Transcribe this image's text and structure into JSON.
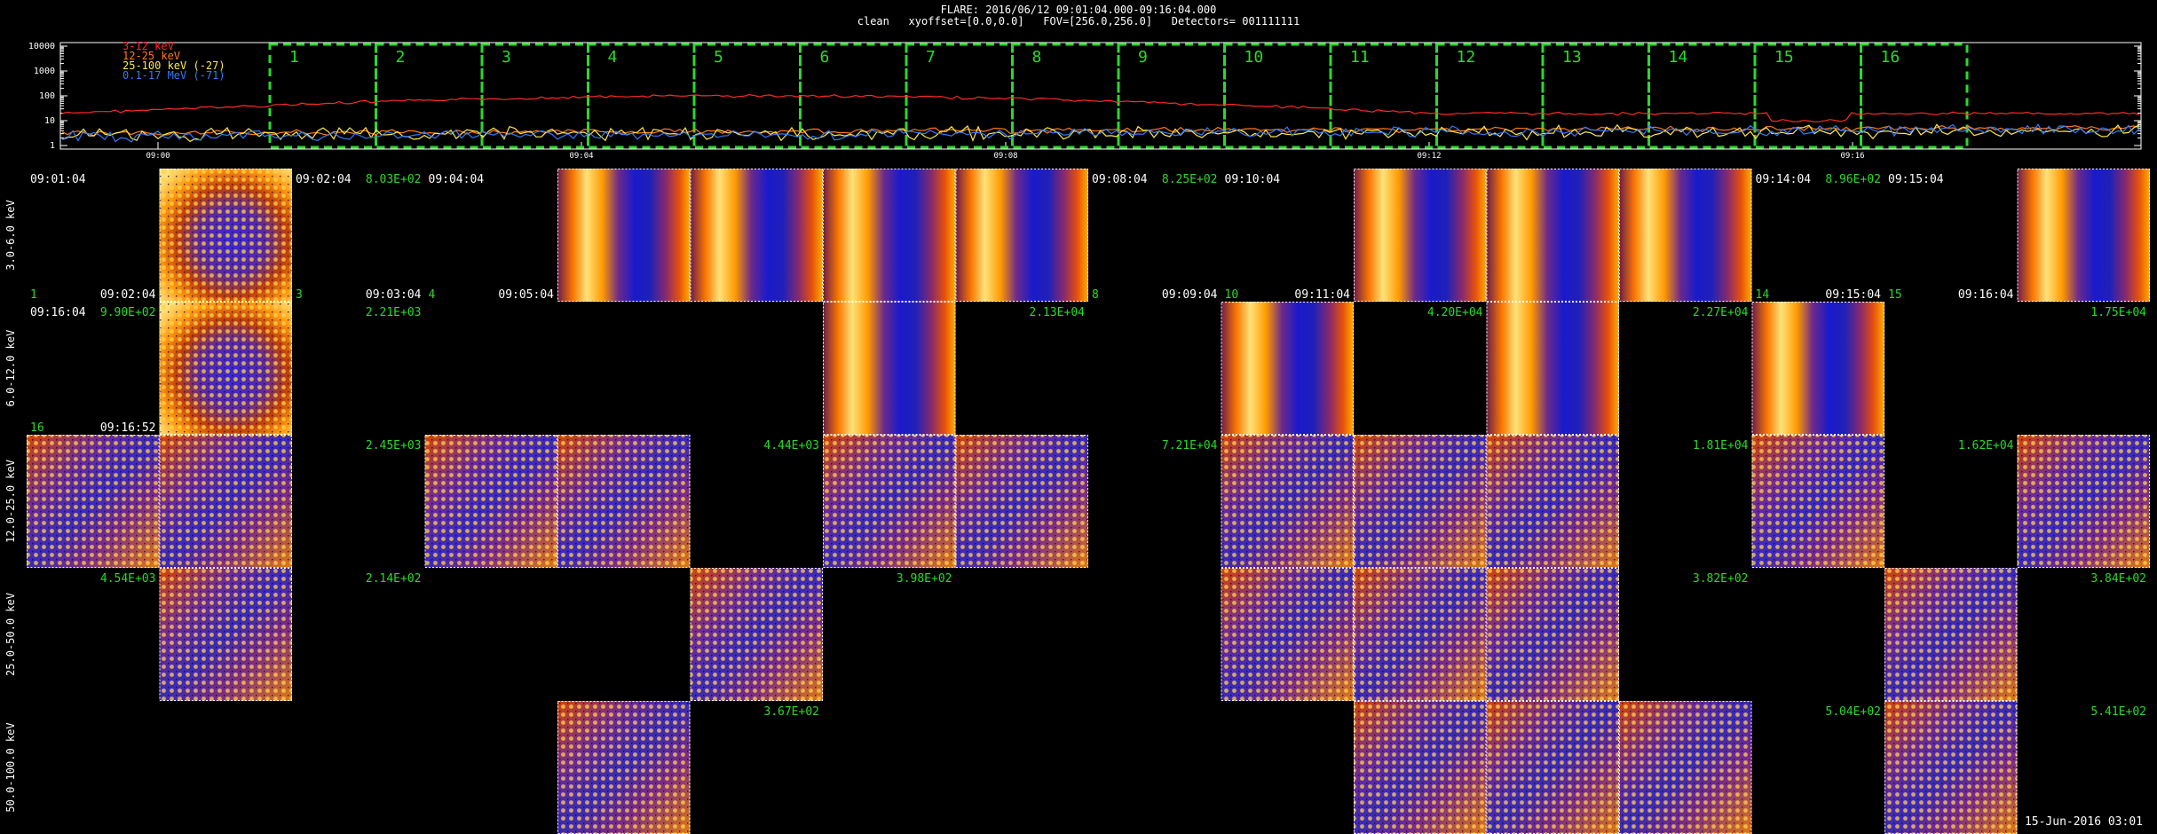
{
  "header": {
    "line1": "FLARE: 2016/06/12 09:01:04.000-09:16:04.000",
    "line2": "clean   xyoffset=[0.0,0.0]   FOV=[256.0,256.0]   Detectors= 001111111"
  },
  "chart_data": {
    "type": "line",
    "ylog": true,
    "y_ticks": [
      "10000",
      "1000",
      "100",
      "10",
      "1"
    ],
    "x_ticks": [
      "09:00",
      "09:04",
      "09:08",
      "09:12",
      "09:16"
    ],
    "legend": [
      {
        "label": "3-12 keV",
        "color": "#ff2a2a"
      },
      {
        "label": "12-25 keV",
        "color": "#ff7a1a"
      },
      {
        "label": "25-100 keV (-27)",
        "color": "#ffe84a"
      },
      {
        "label": "0.1-17 MeV (-71)",
        "color": "#2f7bff"
      }
    ],
    "intervals": [
      "1",
      "2",
      "3",
      "4",
      "5",
      "6",
      "7",
      "8",
      "9",
      "10",
      "11",
      "12",
      "13",
      "14",
      "15",
      "16"
    ],
    "interval_color": "#2bd92b"
  },
  "energy_bands": [
    "3.0-6.0 keV",
    "6.0-12.0 keV",
    "12.0-25.0 keV",
    "25.0-50.0 keV",
    "50.0-100.0 keV"
  ],
  "cell_texts": [
    {
      "t": "09:01:04",
      "c": "w",
      "col": 0,
      "row": 0,
      "p": "tl"
    },
    {
      "t": "1",
      "c": "g",
      "col": 0,
      "row": 0,
      "p": "bl"
    },
    {
      "t": "09:02:04",
      "c": "w",
      "col": 0,
      "row": 0,
      "p": "br"
    },
    {
      "t": "09:02:04",
      "c": "w",
      "col": 2,
      "row": 0,
      "p": "tl"
    },
    {
      "t": "3",
      "c": "g",
      "col": 2,
      "row": 0,
      "p": "bl"
    },
    {
      "t": "8.03E+02",
      "c": "g",
      "col": 2,
      "row": 0,
      "p": "tr"
    },
    {
      "t": "09:03:04",
      "c": "w",
      "col": 2,
      "row": 0,
      "p": "br"
    },
    {
      "t": "09:04:04",
      "c": "w",
      "col": 3,
      "row": 0,
      "p": "tl"
    },
    {
      "t": "4",
      "c": "g",
      "col": 3,
      "row": 0,
      "p": "bl"
    },
    {
      "t": "09:05:04",
      "c": "w",
      "col": 3,
      "row": 0,
      "p": "br"
    },
    {
      "t": "09:08:04",
      "c": "w",
      "col": 8,
      "row": 0,
      "p": "tl"
    },
    {
      "t": "8",
      "c": "g",
      "col": 8,
      "row": 0,
      "p": "bl"
    },
    {
      "t": "8.25E+02",
      "c": "g",
      "col": 8,
      "row": 0,
      "p": "tr"
    },
    {
      "t": "09:09:04",
      "c": "w",
      "col": 8,
      "row": 0,
      "p": "br"
    },
    {
      "t": "09:10:04",
      "c": "w",
      "col": 9,
      "row": 0,
      "p": "tl"
    },
    {
      "t": "10",
      "c": "g",
      "col": 9,
      "row": 0,
      "p": "bl"
    },
    {
      "t": "09:11:04",
      "c": "w",
      "col": 9,
      "row": 0,
      "p": "br"
    },
    {
      "t": "09:14:04",
      "c": "w",
      "col": 13,
      "row": 0,
      "p": "tl"
    },
    {
      "t": "14",
      "c": "g",
      "col": 13,
      "row": 0,
      "p": "bl"
    },
    {
      "t": "8.96E+02",
      "c": "g",
      "col": 13,
      "row": 0,
      "p": "tr"
    },
    {
      "t": "09:15:04",
      "c": "w",
      "col": 13,
      "row": 0,
      "p": "br"
    },
    {
      "t": "09:15:04",
      "c": "w",
      "col": 14,
      "row": 0,
      "p": "tl"
    },
    {
      "t": "15",
      "c": "g",
      "col": 14,
      "row": 0,
      "p": "bl"
    },
    {
      "t": "09:16:04",
      "c": "w",
      "col": 14,
      "row": 0,
      "p": "br"
    },
    {
      "t": "09:16:04",
      "c": "w",
      "col": 0,
      "row": 1,
      "p": "tl"
    },
    {
      "t": "9.90E+02",
      "c": "g",
      "col": 0,
      "row": 1,
      "p": "tr"
    },
    {
      "t": "16",
      "c": "g",
      "col": 0,
      "row": 1,
      "p": "bl"
    },
    {
      "t": "09:16:52",
      "c": "w",
      "col": 0,
      "row": 1,
      "p": "br"
    },
    {
      "t": "2.21E+03",
      "c": "g",
      "col": 2,
      "row": 1,
      "p": "tr"
    },
    {
      "t": "2.13E+04",
      "c": "g",
      "col": 7,
      "row": 1,
      "p": "tr"
    },
    {
      "t": "4.20E+04",
      "c": "g",
      "col": 10,
      "row": 1,
      "p": "tr"
    },
    {
      "t": "2.27E+04",
      "c": "g",
      "col": 12,
      "row": 1,
      "p": "tr"
    },
    {
      "t": "1.75E+04",
      "c": "g",
      "col": 15,
      "row": 1,
      "p": "tr"
    },
    {
      "t": "2.45E+03",
      "c": "g",
      "col": 2,
      "row": 2,
      "p": "tr"
    },
    {
      "t": "4.44E+03",
      "c": "g",
      "col": 5,
      "row": 2,
      "p": "tr"
    },
    {
      "t": "7.21E+04",
      "c": "g",
      "col": 8,
      "row": 2,
      "p": "tr"
    },
    {
      "t": "1.81E+04",
      "c": "g",
      "col": 12,
      "row": 2,
      "p": "tr"
    },
    {
      "t": "1.62E+04",
      "c": "g",
      "col": 14,
      "row": 2,
      "p": "tr"
    },
    {
      "t": "4.54E+03",
      "c": "g",
      "col": 0,
      "row": 3,
      "p": "tr"
    },
    {
      "t": "2.14E+02",
      "c": "g",
      "col": 2,
      "row": 3,
      "p": "tr"
    },
    {
      "t": "3.98E+02",
      "c": "g",
      "col": 6,
      "row": 3,
      "p": "tr"
    },
    {
      "t": "3.82E+02",
      "c": "g",
      "col": 12,
      "row": 3,
      "p": "tr"
    },
    {
      "t": "3.84E+02",
      "c": "g",
      "col": 15,
      "row": 3,
      "p": "tr"
    },
    {
      "t": "3.67E+02",
      "c": "g",
      "col": 5,
      "row": 4,
      "p": "tr"
    },
    {
      "t": "5.04E+02",
      "c": "g",
      "col": 13,
      "row": 4,
      "p": "tr"
    },
    {
      "t": "5.41E+02",
      "c": "g",
      "col": 15,
      "row": 4,
      "p": "tr"
    }
  ],
  "images": [
    {
      "col": 1,
      "row": 0,
      "k": "blob"
    },
    {
      "col": 4,
      "row": 0,
      "k": "bright"
    },
    {
      "col": 5,
      "row": 0,
      "k": "bright"
    },
    {
      "col": 6,
      "row": 0,
      "k": "bright"
    },
    {
      "col": 7,
      "row": 0,
      "k": "bright"
    },
    {
      "col": 10,
      "row": 0,
      "k": "bright"
    },
    {
      "col": 11,
      "row": 0,
      "k": "bright"
    },
    {
      "col": 12,
      "row": 0,
      "k": "bright"
    },
    {
      "col": 15,
      "row": 0,
      "k": "bright"
    },
    {
      "col": 1,
      "row": 1,
      "k": "blob"
    },
    {
      "col": 6,
      "row": 1,
      "k": "bright"
    },
    {
      "col": 9,
      "row": 1,
      "k": "bright"
    },
    {
      "col": 11,
      "row": 1,
      "k": "bright"
    },
    {
      "col": 13,
      "row": 1,
      "k": "bright"
    },
    {
      "col": 0,
      "row": 2,
      "k": "ripple"
    },
    {
      "col": 1,
      "row": 2,
      "k": "ripple"
    },
    {
      "col": 3,
      "row": 2,
      "k": "ripple"
    },
    {
      "col": 4,
      "row": 2,
      "k": "ripple"
    },
    {
      "col": 6,
      "row": 2,
      "k": "ripple"
    },
    {
      "col": 7,
      "row": 2,
      "k": "ripple"
    },
    {
      "col": 9,
      "row": 2,
      "k": "ripple"
    },
    {
      "col": 10,
      "row": 2,
      "k": "ripple"
    },
    {
      "col": 11,
      "row": 2,
      "k": "ripple"
    },
    {
      "col": 13,
      "row": 2,
      "k": "ripple"
    },
    {
      "col": 15,
      "row": 2,
      "k": "ripple"
    },
    {
      "col": 1,
      "row": 3,
      "k": "ripple"
    },
    {
      "col": 5,
      "row": 3,
      "k": "ripple"
    },
    {
      "col": 9,
      "row": 3,
      "k": "ripple"
    },
    {
      "col": 10,
      "row": 3,
      "k": "ripple"
    },
    {
      "col": 11,
      "row": 3,
      "k": "ripple"
    },
    {
      "col": 14,
      "row": 3,
      "k": "ripple"
    },
    {
      "col": 4,
      "row": 4,
      "k": "ripple"
    },
    {
      "col": 10,
      "row": 4,
      "k": "ripple"
    },
    {
      "col": 11,
      "row": 4,
      "k": "ripple"
    },
    {
      "col": 12,
      "row": 4,
      "k": "ripple"
    },
    {
      "col": 14,
      "row": 4,
      "k": "ripple"
    }
  ],
  "footer": {
    "timestamp": "15-Jun-2016 03:01"
  },
  "colors": {
    "label_green": "#2bd92b",
    "label_white": "#ffffff"
  }
}
